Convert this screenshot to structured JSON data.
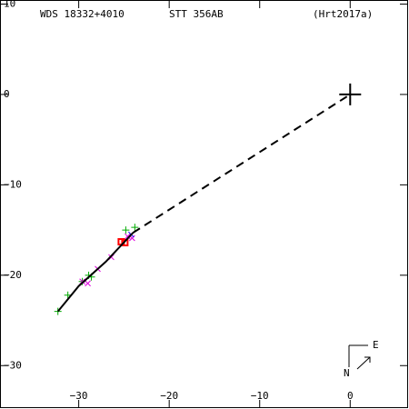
{
  "chart_data": {
    "type": "scatter",
    "title": "WDS 18332+4010",
    "subtitle": "STT 356AB",
    "reference": "(Hrt2017a)",
    "compass": {
      "north": "N",
      "east": "E"
    },
    "xlim": [
      -38.7,
      6.4
    ],
    "ylim": [
      -34.7,
      10.45
    ],
    "xticks": [
      {
        "value": -30,
        "label": "−30"
      },
      {
        "value": -20,
        "label": "−20"
      },
      {
        "value": -10,
        "label": "−10"
      },
      0
    ],
    "yticks": [
      10,
      0,
      {
        "value": -10,
        "label": "−10"
      },
      {
        "value": -20,
        "label": "−20"
      },
      {
        "value": -30,
        "label": "−30"
      }
    ],
    "series": [
      {
        "marker": "plus",
        "color": "#00aa00",
        "x": [
          -23.8,
          -24.8,
          -32.3,
          -29.6,
          -28.9,
          -28.6,
          -31.2
        ],
        "values": [
          -14.7,
          -15.0,
          -24.0,
          -20.7,
          -20.0,
          -20.2,
          -22.2
        ]
      },
      {
        "marker": "cross",
        "color": "#dd00dd",
        "x": [
          -29.6,
          -29.0,
          -27.9,
          -26.4,
          -24.6,
          -24.1
        ],
        "values": [
          -20.7,
          -20.9,
          -19.3,
          -18.0,
          -15.7,
          -15.9
        ]
      },
      {
        "marker": "square",
        "color": "#ff0000",
        "x": [
          -25.3,
          -24.9
        ],
        "values": [
          -16.3,
          -16.4
        ]
      },
      {
        "marker": "cross",
        "color": "#0000ff",
        "x": [
          -24.2
        ],
        "values": [
          -15.5
        ]
      },
      {
        "marker": "line",
        "color": "#000000",
        "x": [
          -32.3,
          -30.0,
          -27.0,
          -24.0
        ],
        "values": [
          -24.0,
          -21.2,
          -18.5,
          -15.3
        ]
      },
      {
        "marker": "dashed",
        "color": "#000000",
        "x": [
          -24.0,
          0
        ],
        "values": [
          -15.3,
          0
        ]
      },
      {
        "marker": "big-plus",
        "color": "#000000",
        "x": [
          0
        ],
        "values": [
          0
        ]
      }
    ]
  }
}
